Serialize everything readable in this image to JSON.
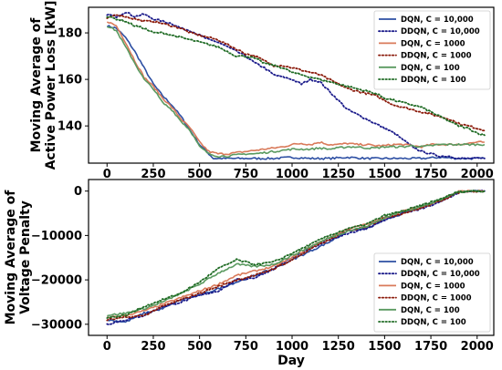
{
  "chart_data": [
    {
      "type": "line",
      "ylabel_line1": "Moving Average of",
      "ylabel_line2": "Active Power Loss [kW]",
      "xlabel": "",
      "xlim": [
        -100,
        2090
      ],
      "ylim": [
        124,
        191
      ],
      "xticks": [
        0,
        250,
        500,
        750,
        1000,
        1250,
        1500,
        1750,
        2000
      ],
      "xtick_labels": [
        "0",
        "250",
        "500",
        "750",
        "1000",
        "1250",
        "1500",
        "1750",
        "2000"
      ],
      "yticks": [
        140,
        160,
        180
      ],
      "ytick_labels": [
        "140",
        "160",
        "180"
      ],
      "grid": false,
      "legend_position": "top-right",
      "series": [
        {
          "name": "DQN, C = 10,000",
          "color": "#2d4fa3",
          "style": "solid",
          "x": [
            0,
            50,
            100,
            150,
            200,
            250,
            300,
            350,
            400,
            450,
            500,
            550,
            575,
            600,
            700,
            800,
            900,
            1000,
            1100,
            1200,
            1300,
            1400,
            1500,
            1600,
            1700,
            1800,
            1900,
            2000,
            2040
          ],
          "y": [
            183,
            182,
            178,
            172,
            165,
            158,
            153,
            149,
            144,
            138,
            132,
            128,
            126,
            126,
            126,
            126,
            126,
            126.5,
            126,
            126,
            126.5,
            126,
            126,
            126,
            126,
            126.5,
            126,
            126,
            126
          ]
        },
        {
          "name": "DDQN, C = 10,000",
          "color": "#1a1a8a",
          "style": "dotted",
          "x": [
            0,
            50,
            100,
            150,
            200,
            250,
            300,
            350,
            400,
            450,
            500,
            550,
            600,
            650,
            700,
            750,
            800,
            850,
            900,
            950,
            1000,
            1050,
            1100,
            1150,
            1200,
            1250,
            1300,
            1350,
            1400,
            1450,
            1500,
            1550,
            1600,
            1650,
            1700,
            1750,
            1800,
            1850,
            1900,
            1950,
            2000,
            2040
          ],
          "y": [
            188,
            187,
            189,
            187,
            188,
            186,
            185,
            184,
            182,
            181,
            179,
            177,
            176,
            174,
            172,
            170,
            167,
            165,
            162,
            161,
            160,
            158,
            160,
            159,
            155,
            151,
            147,
            145,
            143,
            141,
            139,
            137,
            134,
            131,
            129,
            128,
            127,
            127,
            126,
            126,
            126,
            126
          ]
        },
        {
          "name": "DQN, C = 1000",
          "color": "#d97a5a",
          "style": "solid",
          "x": [
            0,
            50,
            100,
            150,
            200,
            250,
            300,
            350,
            400,
            450,
            500,
            550,
            600,
            650,
            700,
            750,
            800,
            850,
            900,
            950,
            1000,
            1050,
            1100,
            1150,
            1200,
            1250,
            1300,
            1350,
            1400,
            1450,
            1500,
            1550,
            1600,
            1650,
            1700,
            1750,
            1800,
            1850,
            1900,
            1950,
            2000,
            2040
          ],
          "y": [
            185,
            183,
            176,
            168,
            161,
            157,
            152,
            148,
            143,
            139,
            133,
            129,
            128,
            128,
            128.5,
            129,
            129.5,
            130,
            130.5,
            131,
            132,
            132.5,
            132,
            133,
            132,
            132,
            132.5,
            132,
            132,
            131.5,
            131.5,
            132,
            132,
            131.5,
            131,
            132,
            132,
            132,
            132,
            132.5,
            133,
            133
          ]
        },
        {
          "name": "DDQN, C = 1000",
          "color": "#8b1a0a",
          "style": "dotted",
          "x": [
            0,
            50,
            100,
            150,
            200,
            250,
            300,
            350,
            400,
            450,
            500,
            550,
            600,
            650,
            700,
            750,
            800,
            850,
            900,
            950,
            1000,
            1050,
            1100,
            1150,
            1200,
            1250,
            1300,
            1350,
            1400,
            1450,
            1500,
            1550,
            1600,
            1650,
            1700,
            1750,
            1800,
            1850,
            1900,
            1950,
            2000,
            2040
          ],
          "y": [
            186,
            188,
            187,
            186,
            185,
            185,
            184,
            183,
            182,
            180,
            179,
            178,
            177,
            175,
            173,
            171,
            170,
            168,
            166,
            166,
            165,
            164,
            163,
            162,
            160,
            158,
            156,
            155,
            154,
            153,
            151,
            149,
            148,
            147,
            146,
            145,
            144,
            143,
            141,
            140,
            139,
            138
          ]
        },
        {
          "name": "DQN, C = 100",
          "color": "#5a9a60",
          "style": "solid",
          "x": [
            0,
            50,
            100,
            150,
            200,
            250,
            300,
            350,
            400,
            450,
            500,
            550,
            600,
            650,
            700,
            750,
            800,
            850,
            900,
            950,
            1000,
            1050,
            1100,
            1150,
            1200,
            1250,
            1300,
            1350,
            1400,
            1450,
            1500,
            1550,
            1600,
            1650,
            1700,
            1750,
            1800,
            1850,
            1900,
            1950,
            2000,
            2040
          ],
          "y": [
            183,
            181,
            174,
            167,
            160,
            156,
            150,
            147,
            142,
            138,
            131,
            128,
            127,
            127,
            127.5,
            128,
            128,
            128.5,
            129,
            129.5,
            130,
            130,
            130,
            130.5,
            130,
            130.5,
            131,
            131,
            130.5,
            130.5,
            131,
            131,
            131,
            131.5,
            131,
            131.5,
            132,
            132,
            132,
            132,
            132,
            132
          ]
        },
        {
          "name": "DDQN, C = 100",
          "color": "#1f6b24",
          "style": "dotted",
          "x": [
            0,
            50,
            100,
            150,
            200,
            250,
            300,
            350,
            400,
            450,
            500,
            550,
            600,
            650,
            700,
            750,
            800,
            850,
            900,
            950,
            1000,
            1050,
            1100,
            1150,
            1200,
            1250,
            1300,
            1350,
            1400,
            1450,
            1500,
            1550,
            1600,
            1650,
            1700,
            1750,
            1800,
            1850,
            1900,
            1950,
            2000,
            2040
          ],
          "y": [
            187,
            186,
            185,
            183,
            182,
            180,
            180,
            179,
            178,
            177,
            176,
            175,
            174,
            172,
            170,
            170,
            169,
            167,
            166,
            165,
            163,
            162,
            161,
            160,
            159,
            158,
            157,
            156,
            155,
            154,
            152,
            151,
            150,
            149,
            148,
            146,
            144,
            142,
            140,
            139,
            137,
            136
          ]
        }
      ]
    },
    {
      "type": "line",
      "ylabel_line1": "Moving Average of",
      "ylabel_line2": "Voltage Penalty",
      "xlabel": "Day",
      "xlim": [
        -100,
        2090
      ],
      "ylim": [
        -32500,
        2600
      ],
      "xticks": [
        0,
        250,
        500,
        750,
        1000,
        1250,
        1500,
        1750,
        2000
      ],
      "xtick_labels": [
        "0",
        "250",
        "500",
        "750",
        "1000",
        "1250",
        "1500",
        "1750",
        "2000"
      ],
      "yticks": [
        -30000,
        -20000,
        -10000,
        0
      ],
      "ytick_labels": [
        "−30000",
        "−20000",
        "−10000",
        "0"
      ],
      "grid": false,
      "legend_position": "bottom-right",
      "series": [
        {
          "name": "DQN, C = 10,000",
          "color": "#2d4fa3",
          "style": "solid",
          "x": [
            0,
            100,
            200,
            300,
            400,
            500,
            600,
            700,
            800,
            900,
            1000,
            1100,
            1200,
            1300,
            1400,
            1500,
            1600,
            1700,
            1800,
            1900,
            1950,
            2000,
            2040
          ],
          "y": [
            -29000,
            -29500,
            -27500,
            -26500,
            -24500,
            -23500,
            -22000,
            -20500,
            -19000,
            -17500,
            -15500,
            -13500,
            -11500,
            -9000,
            -8500,
            -6500,
            -5000,
            -3500,
            -2200,
            -200,
            0,
            0,
            0
          ]
        },
        {
          "name": "DDQN, C = 10,000",
          "color": "#1a1a8a",
          "style": "dotted",
          "x": [
            0,
            100,
            200,
            300,
            400,
            500,
            600,
            700,
            800,
            900,
            1000,
            1100,
            1200,
            1300,
            1400,
            1500,
            1600,
            1700,
            1800,
            1900,
            1950,
            2000,
            2040
          ],
          "y": [
            -30000,
            -29000,
            -28000,
            -26000,
            -25000,
            -23500,
            -22500,
            -20000,
            -19500,
            -17500,
            -15000,
            -13000,
            -11000,
            -9500,
            -8500,
            -6500,
            -5000,
            -4000,
            -2500,
            -300,
            0,
            0,
            0
          ]
        },
        {
          "name": "DQN, C = 1000",
          "color": "#d97a5a",
          "style": "solid",
          "x": [
            0,
            100,
            200,
            300,
            400,
            500,
            600,
            700,
            800,
            900,
            1000,
            1100,
            1200,
            1300,
            1400,
            1500,
            1600,
            1700,
            1800,
            1900,
            1950,
            2000,
            2040
          ],
          "y": [
            -28500,
            -28000,
            -27000,
            -25500,
            -24000,
            -22500,
            -21000,
            -19000,
            -18000,
            -17000,
            -15000,
            -12500,
            -10500,
            -8500,
            -7500,
            -6000,
            -4500,
            -3500,
            -2000,
            -100,
            0,
            0,
            0
          ]
        },
        {
          "name": "DDQN, C = 1000",
          "color": "#8b1a0a",
          "style": "dotted",
          "x": [
            0,
            100,
            200,
            300,
            400,
            500,
            600,
            700,
            800,
            900,
            1000,
            1100,
            1200,
            1300,
            1400,
            1500,
            1600,
            1700,
            1800,
            1900,
            1950,
            2000,
            2040
          ],
          "y": [
            -29000,
            -28500,
            -28000,
            -26000,
            -24500,
            -23000,
            -21500,
            -20000,
            -19000,
            -17500,
            -15500,
            -13000,
            -11000,
            -9000,
            -8000,
            -6000,
            -5000,
            -3800,
            -2200,
            -300,
            0,
            0,
            0
          ]
        },
        {
          "name": "DQN, C = 100",
          "color": "#5a9a60",
          "style": "solid",
          "x": [
            0,
            100,
            200,
            300,
            400,
            500,
            600,
            700,
            800,
            900,
            1000,
            1100,
            1200,
            1300,
            1400,
            1500,
            1600,
            1700,
            1800,
            1900,
            1950,
            2000,
            2040
          ],
          "y": [
            -28000,
            -27500,
            -26500,
            -25000,
            -23000,
            -21000,
            -18500,
            -16500,
            -17000,
            -16500,
            -14500,
            -12500,
            -10500,
            -9000,
            -8000,
            -6000,
            -4500,
            -3500,
            -2000,
            -100,
            0,
            0,
            0
          ]
        },
        {
          "name": "DDQN, C = 100",
          "color": "#1f6b24",
          "style": "dotted",
          "x": [
            0,
            100,
            200,
            300,
            400,
            500,
            600,
            700,
            800,
            900,
            1000,
            1100,
            1200,
            1300,
            1400,
            1500,
            1600,
            1700,
            1800,
            1900,
            1950,
            2000,
            2040
          ],
          "y": [
            -28500,
            -28000,
            -26000,
            -24500,
            -23000,
            -20500,
            -17500,
            -15500,
            -16500,
            -16000,
            -14000,
            -12000,
            -10000,
            -8500,
            -7500,
            -5500,
            -4500,
            -3200,
            -1800,
            -200,
            0,
            0,
            0
          ]
        }
      ]
    }
  ]
}
